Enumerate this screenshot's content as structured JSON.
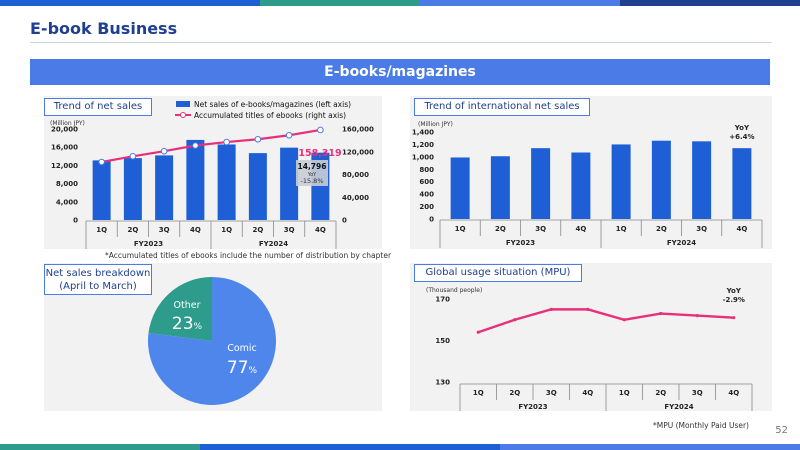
{
  "header": {
    "title": "E-book Business",
    "banner": "E-books/magazines",
    "page_number": "52"
  },
  "colors": {
    "bar": "#1f5fd6",
    "line": "#e8307a",
    "accent_blue": "#4a7be6",
    "pie_comic": "#4f86ec",
    "pie_other": "#2e9c8c"
  },
  "net_sales": {
    "tag": "Trend of net sales",
    "unit": "(Million JPY)",
    "legend_bar": "Net sales of e-books/magazines (left axis)",
    "legend_line": "Accumulated titles of ebooks (right axis)",
    "callout_line_value": "158,319",
    "callout_bar_value": "14,796",
    "callout_yoy_label": "YoY",
    "callout_yoy_value": "-15.8%",
    "note": "*Accumulated titles of ebooks include the number of distribution by chapter"
  },
  "international": {
    "tag": "Trend of international net sales",
    "unit": "(Million JPY)",
    "yoy_label": "YoY",
    "yoy_value": "+6.4%"
  },
  "breakdown": {
    "tag_line1": "Net sales breakdown",
    "tag_line2": "(April to March)",
    "other_label": "Other",
    "other_pct": "23",
    "comic_label": "Comic",
    "comic_pct": "77",
    "pct_sign": "%"
  },
  "mpu": {
    "tag": "Global usage situation (MPU)",
    "unit": "(Thousand people)",
    "yoy_label": "YoY",
    "yoy_value": "-2.9%",
    "note": "*MPU (Monthly Paid User)"
  },
  "chart_data": [
    {
      "type": "bar",
      "categories": [
        "1Q",
        "2Q",
        "3Q",
        "4Q",
        "1Q",
        "2Q",
        "3Q",
        "4Q"
      ],
      "groups": [
        "FY2023",
        "FY2024"
      ],
      "series": [
        {
          "name": "Net sales of e-books/magazines (left axis)",
          "type": "bar",
          "axis": "left",
          "values": [
            13100,
            13600,
            14200,
            17600,
            16600,
            14700,
            15900,
            14796
          ]
        },
        {
          "name": "Accumulated titles of ebooks (right axis)",
          "type": "line",
          "axis": "right",
          "values": [
            102000,
            112000,
            121000,
            131000,
            137000,
            142000,
            149000,
            158319
          ]
        }
      ],
      "ylim_left": [
        0,
        20000
      ],
      "yticks_left": [
        "0",
        "4,000",
        "8,000",
        "12,000",
        "16,000",
        "20,000"
      ],
      "ylim_right": [
        0,
        160000
      ],
      "yticks_right": [
        "0",
        "40,000",
        "80,000",
        "120,000",
        "160,000"
      ]
    },
    {
      "type": "bar",
      "categories": [
        "1Q",
        "2Q",
        "3Q",
        "4Q",
        "1Q",
        "2Q",
        "3Q",
        "4Q"
      ],
      "groups": [
        "FY2023",
        "FY2024"
      ],
      "series": [
        {
          "values": [
            990,
            1010,
            1140,
            1070,
            1200,
            1260,
            1250,
            1140
          ]
        }
      ],
      "ylim": [
        0,
        1400
      ],
      "yticks": [
        "0",
        "200",
        "400",
        "600",
        "800",
        "1,000",
        "1,200",
        "1,400"
      ]
    },
    {
      "type": "pie",
      "labels": [
        "Comic",
        "Other"
      ],
      "values": [
        77,
        23
      ]
    },
    {
      "type": "line",
      "categories": [
        "1Q",
        "2Q",
        "3Q",
        "4Q",
        "1Q",
        "2Q",
        "3Q",
        "4Q"
      ],
      "groups": [
        "FY2023",
        "FY2024"
      ],
      "series": [
        {
          "values": [
            154,
            160,
            165,
            165,
            160,
            163,
            162,
            161
          ]
        }
      ],
      "ylim": [
        130,
        170
      ],
      "yticks": [
        "130",
        "150",
        "170"
      ]
    }
  ]
}
